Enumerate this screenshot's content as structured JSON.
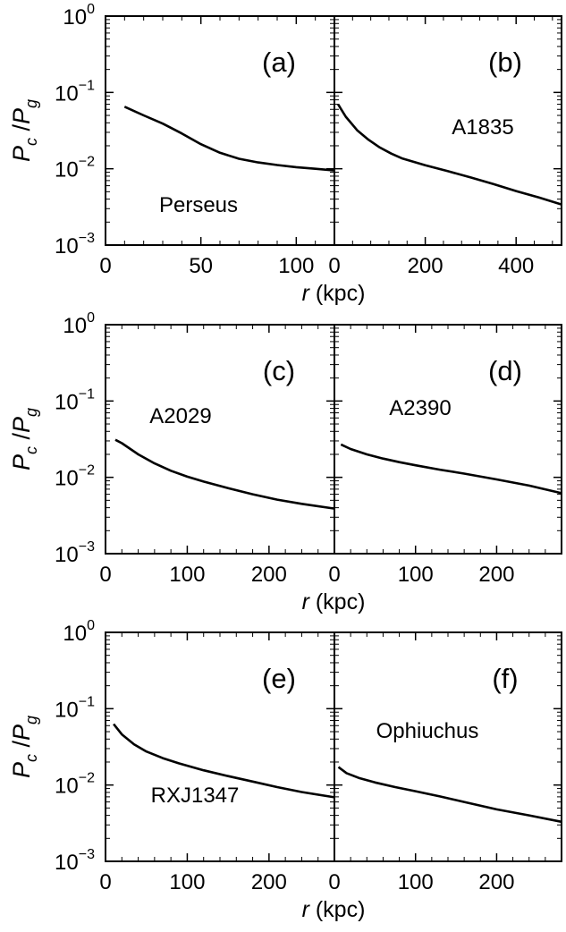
{
  "figure": {
    "ylabel": {
      "p": "P",
      "c": "c",
      "slash": " /",
      "g": "g"
    },
    "xlabel": {
      "r": "r",
      "unit": " (kpc)"
    }
  },
  "chart_data": [
    {
      "type": "line",
      "panel": "(a)",
      "name": "Perseus",
      "yscale": "log",
      "xlim": [
        0,
        120
      ],
      "ylim": [
        0.001,
        1
      ],
      "xticks": [
        0,
        50,
        100
      ],
      "x": [
        10,
        20,
        30,
        40,
        50,
        60,
        70,
        80,
        90,
        100,
        110,
        120
      ],
      "y": [
        0.065,
        0.05,
        0.039,
        0.029,
        0.021,
        0.0162,
        0.0135,
        0.0121,
        0.0112,
        0.0105,
        0.01,
        0.0095
      ]
    },
    {
      "type": "line",
      "panel": "(b)",
      "name": "A1835",
      "yscale": "log",
      "xlim": [
        0,
        500
      ],
      "ylim": [
        0.001,
        1
      ],
      "xticks": [
        0,
        200,
        400
      ],
      "x": [
        8,
        25,
        50,
        75,
        100,
        125,
        150,
        200,
        250,
        300,
        350,
        400,
        450,
        500
      ],
      "y": [
        0.07,
        0.048,
        0.032,
        0.024,
        0.019,
        0.0158,
        0.0136,
        0.0111,
        0.0093,
        0.0077,
        0.0063,
        0.0051,
        0.0042,
        0.0034
      ]
    },
    {
      "type": "line",
      "panel": "(c)",
      "name": "A2029",
      "yscale": "log",
      "xlim": [
        0,
        280
      ],
      "ylim": [
        0.001,
        1
      ],
      "xticks": [
        0,
        100,
        200
      ],
      "x": [
        12,
        20,
        40,
        60,
        80,
        100,
        120,
        150,
        180,
        210,
        240,
        280
      ],
      "y": [
        0.031,
        0.028,
        0.02,
        0.0152,
        0.0122,
        0.0102,
        0.0088,
        0.0072,
        0.006,
        0.0051,
        0.0045,
        0.0039
      ]
    },
    {
      "type": "line",
      "panel": "(d)",
      "name": "A2390",
      "yscale": "log",
      "xlim": [
        0,
        280
      ],
      "ylim": [
        0.001,
        1
      ],
      "xticks": [
        0,
        100,
        200
      ],
      "x": [
        8,
        20,
        40,
        60,
        80,
        100,
        130,
        160,
        200,
        240,
        280
      ],
      "y": [
        0.027,
        0.0235,
        0.02,
        0.0176,
        0.0158,
        0.0144,
        0.0126,
        0.0112,
        0.0094,
        0.0078,
        0.0062
      ]
    },
    {
      "type": "line",
      "panel": "(e)",
      "name": "RXJ1347",
      "yscale": "log",
      "xlim": [
        0,
        280
      ],
      "ylim": [
        0.001,
        1
      ],
      "xticks": [
        0,
        100,
        200
      ],
      "x": [
        10,
        20,
        35,
        50,
        70,
        90,
        120,
        150,
        180,
        210,
        240,
        280
      ],
      "y": [
        0.063,
        0.046,
        0.034,
        0.0275,
        0.0225,
        0.0192,
        0.0156,
        0.0131,
        0.0111,
        0.0094,
        0.0081,
        0.0069
      ]
    },
    {
      "type": "line",
      "panel": "(f)",
      "name": "Ophiuchus",
      "yscale": "log",
      "xlim": [
        0,
        280
      ],
      "ylim": [
        0.001,
        1
      ],
      "xticks": [
        0,
        100,
        200
      ],
      "x": [
        5,
        15,
        30,
        50,
        75,
        100,
        130,
        160,
        200,
        240,
        280
      ],
      "y": [
        0.0172,
        0.0143,
        0.0124,
        0.0108,
        0.0094,
        0.0083,
        0.0071,
        0.006,
        0.0048,
        0.004,
        0.0033
      ]
    }
  ]
}
